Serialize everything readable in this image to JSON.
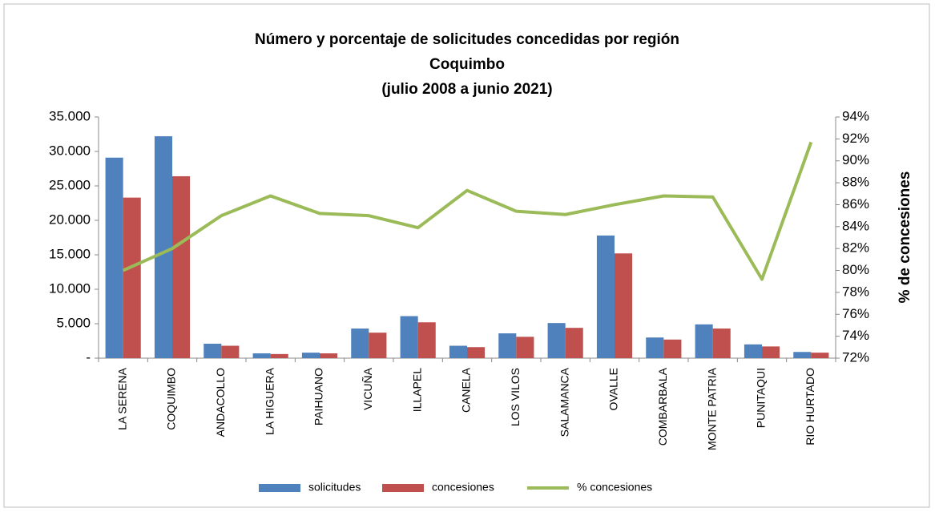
{
  "chart_data": {
    "type": "bar",
    "title": [
      "Número y porcentaje de solicitudes concedidas por región",
      "Coquimbo",
      "(julio 2008 a junio 2021)"
    ],
    "y2label": "% de concesiones",
    "categories": [
      "LA SERENA",
      "COQUIMBO",
      "ANDACOLLO",
      "LA HIGUERA",
      "PAIHUANO",
      "VICUÑA",
      "ILLAPEL",
      "CANELA",
      "LOS VILOS",
      "SALAMANCA",
      "OVALLE",
      "COMBARBALA",
      "MONTE PATRIA",
      "PUNITAQUI",
      "RIO HURTADO"
    ],
    "series": [
      {
        "name": "solicitudes",
        "color": "#4f81bd",
        "type": "bar",
        "values": [
          29100,
          32200,
          2100,
          700,
          800,
          4300,
          6100,
          1800,
          3600,
          5100,
          17800,
          3000,
          4900,
          2000,
          900
        ]
      },
      {
        "name": "concesiones",
        "color": "#c0504d",
        "type": "bar",
        "values": [
          23300,
          26400,
          1800,
          600,
          700,
          3700,
          5200,
          1600,
          3100,
          4400,
          15200,
          2700,
          4300,
          1700,
          800
        ]
      },
      {
        "name": "% concesiones",
        "color": "#9bbb59",
        "type": "line",
        "axis": "y2",
        "values": [
          80.0,
          82.0,
          85.0,
          86.8,
          85.2,
          85.0,
          83.9,
          87.3,
          85.4,
          85.1,
          86.0,
          86.8,
          86.7,
          79.2,
          91.7
        ]
      }
    ],
    "ylim": [
      0,
      35000
    ],
    "yticks": [
      {
        "value": 0,
        "label": "-"
      },
      {
        "value": 5000,
        "label": "5.000"
      },
      {
        "value": 10000,
        "label": "10.000"
      },
      {
        "value": 15000,
        "label": "15.000"
      },
      {
        "value": 20000,
        "label": "20.000"
      },
      {
        "value": 25000,
        "label": "25.000"
      },
      {
        "value": 30000,
        "label": "30.000"
      },
      {
        "value": 35000,
        "label": "35.000"
      }
    ],
    "y2lim": [
      72,
      94
    ],
    "y2ticks": [
      {
        "value": 72,
        "label": "72%"
      },
      {
        "value": 74,
        "label": "74%"
      },
      {
        "value": 76,
        "label": "76%"
      },
      {
        "value": 78,
        "label": "78%"
      },
      {
        "value": 80,
        "label": "80%"
      },
      {
        "value": 82,
        "label": "82%"
      },
      {
        "value": 84,
        "label": "84%"
      },
      {
        "value": 86,
        "label": "86%"
      },
      {
        "value": 88,
        "label": "88%"
      },
      {
        "value": 90,
        "label": "90%"
      },
      {
        "value": 92,
        "label": "92%"
      },
      {
        "value": 94,
        "label": "94%"
      }
    ],
    "legend": "bottom"
  }
}
